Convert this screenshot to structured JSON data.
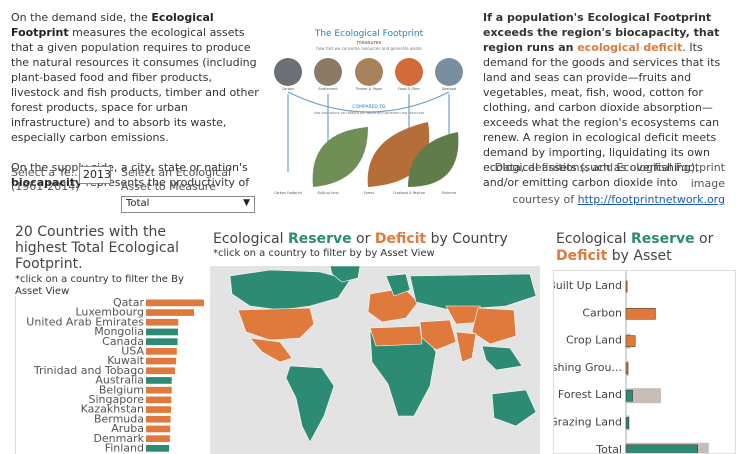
{
  "intro": {
    "p1_pre": "On the demand side, the ",
    "p1_bold": "Ecological Footprint",
    "p1_post": " measures the ecological assets that a given population requires to produce the natural resources it consumes (including plant-based food and fiber products, livestock and fish products, timber and other forest products, space for urban infrastructure) and to absorb its waste, especially carbon emissions.",
    "p2_pre": "On the supply side, a city, state or nation's ",
    "p2_bold": "biocapacity",
    "p2_post": " represents the productivity of"
  },
  "infographic": {
    "title": "The Ecological Footprint",
    "subtitle": "measures",
    "caption": "how fast we consume resources and generate waste",
    "compared": "COMPARED TO",
    "compared_caption": "how fast nature can absorb our waste and generate new resources",
    "top_labels": [
      "Carbon",
      "Settlement",
      "Timber & Paper",
      "Food & Fiber",
      "Seafood"
    ],
    "bottom_labels": [
      "Carbon Footprint",
      "Built-up land",
      "Forest",
      "Cropland & Pasture",
      "Fisheries"
    ]
  },
  "deficit": {
    "bold1": "If a population's Ecological Footprint exceeds the region's biocapacity, that region runs an ",
    "orange": "ecological deficit",
    "rest": ". Its demand for the goods and services that its land and seas can provide—fruits and vegetables, meat, fish, wood, cotton for clothing, and carbon dioxide absorption—exceeds what the region's ecosystems can renew. A region in ecological deficit meets demand by importing, liquidating its own ecological assets (such as overfishing), and/or emitting carbon dioxide into"
  },
  "credit": {
    "line1": "Data, definitions, and Ecological Footprint image",
    "line2": "courtesy of ",
    "link": "http://footprintnetwork.org"
  },
  "filters": {
    "year_label": "Select a Ye...",
    "year_range": "(1961-2014)",
    "year_value": "2013",
    "asset_label": "Select an Ecological Asset to Measure",
    "asset_value": "Total",
    "asset_arrow": "▼"
  },
  "left_panel": {
    "title": "20 Countries with the highest Total Ecological Footprint.",
    "subtitle": "*click on a country to filter the By Asset View"
  },
  "map_panel": {
    "title_pre": "Ecological ",
    "title_reserve": "Reserve",
    "title_mid": " or ",
    "title_deficit": "Deficit",
    "title_post": " by Country",
    "subtitle": "*click on a country to filter by by Asset View"
  },
  "right_panel": {
    "title_pre": "Ecological ",
    "title_reserve": "Reserve",
    "title_mid": " or",
    "title_deficit": "Deficit",
    "title_post": " by Asset"
  },
  "colors": {
    "reserve": "#2e8b73",
    "deficit": "#e07a3c",
    "biocap": "#c8bcb6",
    "land": "#2e8b73"
  },
  "chart_data": [
    {
      "type": "bar",
      "orientation": "horizontal",
      "title": "20 Countries with the highest Total Ecological Footprint.",
      "categories": [
        "Qatar",
        "Luxembourg",
        "United Arab Emirates",
        "Mongolia",
        "Canada",
        "USA",
        "Kuwait",
        "Trinidad and Tobago",
        "Australia",
        "Belgium",
        "Singapore",
        "Kazakhstan",
        "Bermuda",
        "Aruba",
        "Denmark",
        "Finland"
      ],
      "values": [
        15.8,
        13.1,
        8.8,
        8.7,
        8.6,
        8.4,
        8.2,
        7.9,
        7.0,
        7.0,
        6.9,
        6.8,
        6.7,
        6.6,
        6.5,
        6.3
      ],
      "status": [
        "deficit",
        "deficit",
        "deficit",
        "reserve",
        "reserve",
        "deficit",
        "deficit",
        "deficit",
        "reserve",
        "deficit",
        "deficit",
        "deficit",
        "deficit",
        "deficit",
        "deficit",
        "reserve"
      ]
    },
    {
      "type": "bar",
      "orientation": "horizontal",
      "title": "Ecological Reserve or Deficit by Asset",
      "categories": [
        "Built Up Land",
        "Carbon",
        "Crop Land",
        "Fishing Grou...",
        "Forest Land",
        "Grazing Land",
        "Total"
      ],
      "series": [
        {
          "values": [
            0.06,
            1.6,
            0.5,
            0.1,
            0.36,
            0.15,
            3.9
          ]
        },
        {
          "values": [
            0.06,
            0,
            0.25,
            0.15,
            1.9,
            0.2,
            4.5
          ]
        }
      ],
      "status": [
        "deficit",
        "deficit",
        "deficit",
        "deficit",
        "reserve",
        "reserve",
        "reserve"
      ],
      "xlim": [
        0,
        5
      ]
    }
  ]
}
